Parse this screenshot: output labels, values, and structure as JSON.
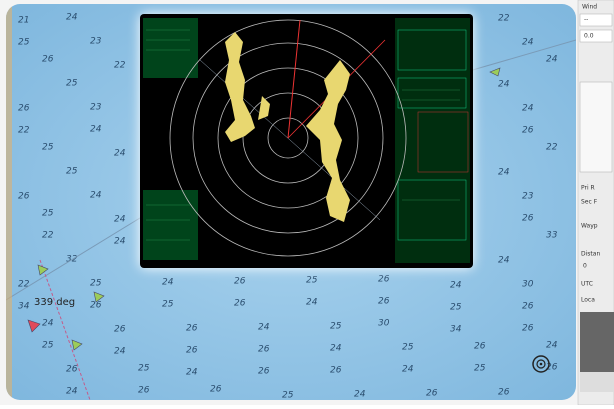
{
  "chart_view": {
    "heading_label": "339 deg",
    "soundings": [
      "21",
      "24",
      "22",
      "25",
      "23",
      "24",
      "26",
      "22",
      "24",
      "25",
      "24",
      "26",
      "23",
      "24",
      "22",
      "24",
      "26",
      "25",
      "24",
      "22",
      "25",
      "24",
      "26",
      "24",
      "23",
      "25",
      "24",
      "26",
      "22",
      "24",
      "33",
      "32",
      "24",
      "22",
      "25",
      "24",
      "26",
      "25",
      "26",
      "24",
      "30",
      "34",
      "26",
      "25",
      "26",
      "24",
      "26",
      "25",
      "26",
      "24",
      "26",
      "26",
      "24",
      "25",
      "30",
      "34",
      "26",
      "25",
      "24",
      "26",
      "26",
      "24",
      "25",
      "26",
      "24",
      "26",
      "25",
      "24",
      "26",
      "26",
      "24",
      "25",
      "26",
      "24",
      "26",
      "26",
      "25",
      "24",
      "26",
      "26"
    ]
  },
  "sidebar": {
    "wind": {
      "label": "Wind",
      "value_1": "--",
      "value_2": "0.0"
    },
    "labels": [
      "Pri R",
      "Sec F",
      "Wayp",
      "Distan",
      "UTC",
      "Loca"
    ],
    "distance_value": "0"
  }
}
